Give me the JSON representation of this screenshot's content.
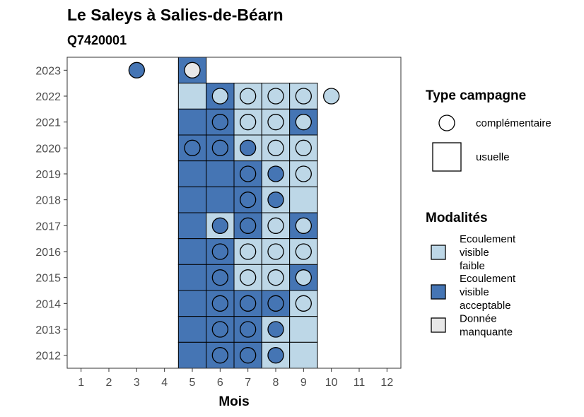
{
  "chart_data": {
    "type": "heatmap",
    "title": "Le Saleys à Salies-de-Béarn",
    "subtitle": "Q7420001",
    "xlabel": "Mois",
    "ylabel": "",
    "x_ticks": [
      "1",
      "2",
      "3",
      "4",
      "5",
      "6",
      "7",
      "8",
      "9",
      "10",
      "11",
      "12"
    ],
    "y_ticks": [
      "2012",
      "2013",
      "2014",
      "2015",
      "2016",
      "2017",
      "2018",
      "2019",
      "2020",
      "2021",
      "2022",
      "2023"
    ],
    "xlim": [
      0.5,
      12.5
    ],
    "ylim": [
      2011.5,
      2023.5
    ],
    "grid": false,
    "legend_position": "right",
    "colors": {
      "Ecoulement visible faible": "#bdd7e7",
      "Ecoulement visible acceptable": "#4575b4",
      "Donnée manquante": "#e8e8e8"
    },
    "tiles": [
      {
        "month": 5,
        "year": 2023,
        "modalite": "Ecoulement visible acceptable"
      },
      {
        "month": 5,
        "year": 2022,
        "modalite": "Ecoulement visible faible"
      },
      {
        "month": 6,
        "year": 2022,
        "modalite": "Ecoulement visible acceptable"
      },
      {
        "month": 7,
        "year": 2022,
        "modalite": "Ecoulement visible faible"
      },
      {
        "month": 8,
        "year": 2022,
        "modalite": "Ecoulement visible faible"
      },
      {
        "month": 9,
        "year": 2022,
        "modalite": "Ecoulement visible faible"
      },
      {
        "month": 5,
        "year": 2021,
        "modalite": "Ecoulement visible acceptable"
      },
      {
        "month": 6,
        "year": 2021,
        "modalite": "Ecoulement visible acceptable"
      },
      {
        "month": 7,
        "year": 2021,
        "modalite": "Ecoulement visible faible"
      },
      {
        "month": 8,
        "year": 2021,
        "modalite": "Ecoulement visible faible"
      },
      {
        "month": 9,
        "year": 2021,
        "modalite": "Ecoulement visible acceptable"
      },
      {
        "month": 5,
        "year": 2020,
        "modalite": "Ecoulement visible acceptable"
      },
      {
        "month": 6,
        "year": 2020,
        "modalite": "Ecoulement visible acceptable"
      },
      {
        "month": 7,
        "year": 2020,
        "modalite": "Ecoulement visible faible"
      },
      {
        "month": 8,
        "year": 2020,
        "modalite": "Ecoulement visible faible"
      },
      {
        "month": 9,
        "year": 2020,
        "modalite": "Ecoulement visible faible"
      },
      {
        "month": 5,
        "year": 2019,
        "modalite": "Ecoulement visible acceptable"
      },
      {
        "month": 6,
        "year": 2019,
        "modalite": "Ecoulement visible acceptable"
      },
      {
        "month": 7,
        "year": 2019,
        "modalite": "Ecoulement visible acceptable"
      },
      {
        "month": 8,
        "year": 2019,
        "modalite": "Ecoulement visible faible"
      },
      {
        "month": 9,
        "year": 2019,
        "modalite": "Ecoulement visible faible"
      },
      {
        "month": 5,
        "year": 2018,
        "modalite": "Ecoulement visible acceptable"
      },
      {
        "month": 6,
        "year": 2018,
        "modalite": "Ecoulement visible acceptable"
      },
      {
        "month": 7,
        "year": 2018,
        "modalite": "Ecoulement visible acceptable"
      },
      {
        "month": 8,
        "year": 2018,
        "modalite": "Ecoulement visible faible"
      },
      {
        "month": 9,
        "year": 2018,
        "modalite": "Ecoulement visible faible"
      },
      {
        "month": 5,
        "year": 2017,
        "modalite": "Ecoulement visible acceptable"
      },
      {
        "month": 6,
        "year": 2017,
        "modalite": "Ecoulement visible faible"
      },
      {
        "month": 7,
        "year": 2017,
        "modalite": "Ecoulement visible acceptable"
      },
      {
        "month": 8,
        "year": 2017,
        "modalite": "Ecoulement visible faible"
      },
      {
        "month": 9,
        "year": 2017,
        "modalite": "Ecoulement visible acceptable"
      },
      {
        "month": 5,
        "year": 2016,
        "modalite": "Ecoulement visible acceptable"
      },
      {
        "month": 6,
        "year": 2016,
        "modalite": "Ecoulement visible acceptable"
      },
      {
        "month": 7,
        "year": 2016,
        "modalite": "Ecoulement visible faible"
      },
      {
        "month": 8,
        "year": 2016,
        "modalite": "Ecoulement visible faible"
      },
      {
        "month": 9,
        "year": 2016,
        "modalite": "Ecoulement visible faible"
      },
      {
        "month": 5,
        "year": 2015,
        "modalite": "Ecoulement visible acceptable"
      },
      {
        "month": 6,
        "year": 2015,
        "modalite": "Ecoulement visible acceptable"
      },
      {
        "month": 7,
        "year": 2015,
        "modalite": "Ecoulement visible faible"
      },
      {
        "month": 8,
        "year": 2015,
        "modalite": "Ecoulement visible faible"
      },
      {
        "month": 9,
        "year": 2015,
        "modalite": "Ecoulement visible acceptable"
      },
      {
        "month": 5,
        "year": 2014,
        "modalite": "Ecoulement visible acceptable"
      },
      {
        "month": 6,
        "year": 2014,
        "modalite": "Ecoulement visible acceptable"
      },
      {
        "month": 7,
        "year": 2014,
        "modalite": "Ecoulement visible acceptable"
      },
      {
        "month": 8,
        "year": 2014,
        "modalite": "Ecoulement visible acceptable"
      },
      {
        "month": 9,
        "year": 2014,
        "modalite": "Ecoulement visible faible"
      },
      {
        "month": 5,
        "year": 2013,
        "modalite": "Ecoulement visible acceptable"
      },
      {
        "month": 6,
        "year": 2013,
        "modalite": "Ecoulement visible acceptable"
      },
      {
        "month": 7,
        "year": 2013,
        "modalite": "Ecoulement visible acceptable"
      },
      {
        "month": 8,
        "year": 2013,
        "modalite": "Ecoulement visible faible"
      },
      {
        "month": 9,
        "year": 2013,
        "modalite": "Ecoulement visible faible"
      },
      {
        "month": 5,
        "year": 2012,
        "modalite": "Ecoulement visible acceptable"
      },
      {
        "month": 6,
        "year": 2012,
        "modalite": "Ecoulement visible acceptable"
      },
      {
        "month": 7,
        "year": 2012,
        "modalite": "Ecoulement visible acceptable"
      },
      {
        "month": 8,
        "year": 2012,
        "modalite": "Ecoulement visible faible"
      },
      {
        "month": 9,
        "year": 2012,
        "modalite": "Ecoulement visible faible"
      }
    ],
    "points": [
      {
        "month": 3,
        "year": 2023,
        "modalite": "Ecoulement visible acceptable"
      },
      {
        "month": 5,
        "year": 2023,
        "modalite": "Donnée manquante"
      },
      {
        "month": 6,
        "year": 2022,
        "modalite": "Ecoulement visible faible"
      },
      {
        "month": 7,
        "year": 2022,
        "modalite": "Ecoulement visible faible"
      },
      {
        "month": 8,
        "year": 2022,
        "modalite": "Ecoulement visible faible"
      },
      {
        "month": 9,
        "year": 2022,
        "modalite": "Ecoulement visible faible"
      },
      {
        "month": 10,
        "year": 2022,
        "modalite": "Ecoulement visible faible"
      },
      {
        "month": 6,
        "year": 2021,
        "modalite": "Ecoulement visible acceptable"
      },
      {
        "month": 7,
        "year": 2021,
        "modalite": "Ecoulement visible faible"
      },
      {
        "month": 8,
        "year": 2021,
        "modalite": "Ecoulement visible faible"
      },
      {
        "month": 9,
        "year": 2021,
        "modalite": "Ecoulement visible faible"
      },
      {
        "month": 5,
        "year": 2020,
        "modalite": "Ecoulement visible acceptable"
      },
      {
        "month": 6,
        "year": 2020,
        "modalite": "Ecoulement visible acceptable"
      },
      {
        "month": 7,
        "year": 2020,
        "modalite": "Ecoulement visible acceptable"
      },
      {
        "month": 8,
        "year": 2020,
        "modalite": "Ecoulement visible faible"
      },
      {
        "month": 9,
        "year": 2020,
        "modalite": "Ecoulement visible faible"
      },
      {
        "month": 7,
        "year": 2019,
        "modalite": "Ecoulement visible acceptable"
      },
      {
        "month": 8,
        "year": 2019,
        "modalite": "Ecoulement visible acceptable"
      },
      {
        "month": 9,
        "year": 2019,
        "modalite": "Ecoulement visible faible"
      },
      {
        "month": 7,
        "year": 2018,
        "modalite": "Ecoulement visible acceptable"
      },
      {
        "month": 8,
        "year": 2018,
        "modalite": "Ecoulement visible acceptable"
      },
      {
        "month": 6,
        "year": 2017,
        "modalite": "Ecoulement visible acceptable"
      },
      {
        "month": 7,
        "year": 2017,
        "modalite": "Ecoulement visible acceptable"
      },
      {
        "month": 8,
        "year": 2017,
        "modalite": "Ecoulement visible faible"
      },
      {
        "month": 9,
        "year": 2017,
        "modalite": "Ecoulement visible faible"
      },
      {
        "month": 6,
        "year": 2016,
        "modalite": "Ecoulement visible acceptable"
      },
      {
        "month": 7,
        "year": 2016,
        "modalite": "Ecoulement visible faible"
      },
      {
        "month": 8,
        "year": 2016,
        "modalite": "Ecoulement visible faible"
      },
      {
        "month": 9,
        "year": 2016,
        "modalite": "Ecoulement visible faible"
      },
      {
        "month": 6,
        "year": 2015,
        "modalite": "Ecoulement visible acceptable"
      },
      {
        "month": 7,
        "year": 2015,
        "modalite": "Ecoulement visible faible"
      },
      {
        "month": 8,
        "year": 2015,
        "modalite": "Ecoulement visible faible"
      },
      {
        "month": 9,
        "year": 2015,
        "modalite": "Ecoulement visible faible"
      },
      {
        "month": 6,
        "year": 2014,
        "modalite": "Ecoulement visible acceptable"
      },
      {
        "month": 7,
        "year": 2014,
        "modalite": "Ecoulement visible acceptable"
      },
      {
        "month": 8,
        "year": 2014,
        "modalite": "Ecoulement visible acceptable"
      },
      {
        "month": 9,
        "year": 2014,
        "modalite": "Ecoulement visible faible"
      },
      {
        "month": 6,
        "year": 2013,
        "modalite": "Ecoulement visible acceptable"
      },
      {
        "month": 7,
        "year": 2013,
        "modalite": "Ecoulement visible acceptable"
      },
      {
        "month": 8,
        "year": 2013,
        "modalite": "Ecoulement visible acceptable"
      },
      {
        "month": 6,
        "year": 2012,
        "modalite": "Ecoulement visible acceptable"
      },
      {
        "month": 7,
        "year": 2012,
        "modalite": "Ecoulement visible acceptable"
      },
      {
        "month": 8,
        "year": 2012,
        "modalite": "Ecoulement visible acceptable"
      }
    ]
  },
  "legend": {
    "type_title": "Type campagne",
    "type_items": [
      {
        "shape": "circle",
        "label": "complémentaire"
      },
      {
        "shape": "square",
        "label": "usuelle"
      }
    ],
    "modalites_title": "Modalités",
    "modalites_items": [
      {
        "lines": [
          "Ecoulement",
          "visible",
          "faible"
        ],
        "color": "#bdd7e7"
      },
      {
        "lines": [
          "Ecoulement",
          "visible",
          "acceptable"
        ],
        "color": "#4575b4"
      },
      {
        "lines": [
          "Donnée",
          "manquante"
        ],
        "color": "#e8e8e8"
      }
    ]
  }
}
